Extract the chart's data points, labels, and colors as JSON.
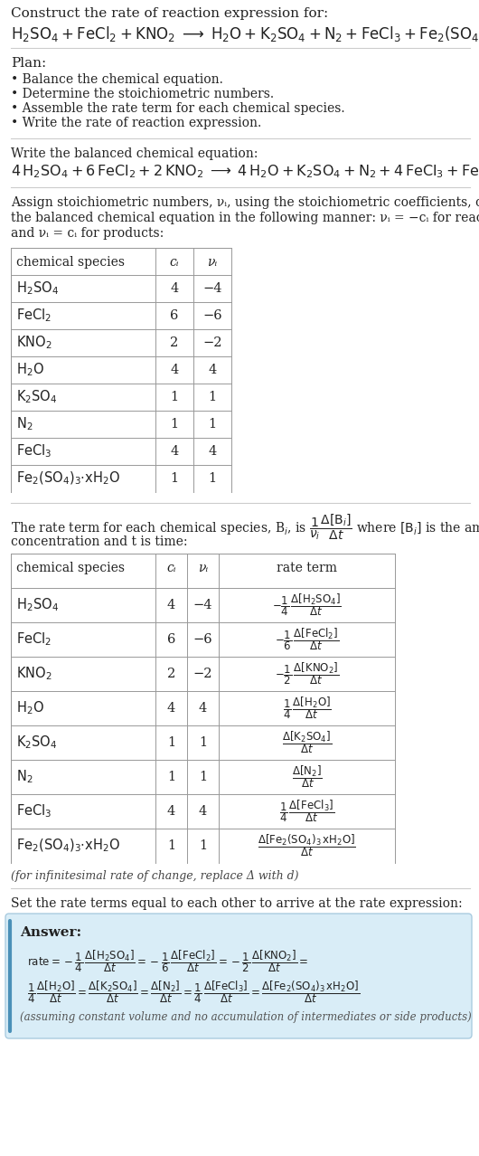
{
  "title_line1": "Construct the rate of reaction expression for:",
  "plan_header": "Plan:",
  "plan_items": [
    "• Balance the chemical equation.",
    "• Determine the stoichiometric numbers.",
    "• Assemble the rate term for each chemical species.",
    "• Write the rate of reaction expression."
  ],
  "balanced_header": "Write the balanced chemical equation:",
  "stoich_intro_lines": [
    "Assign stoichiometric numbers, νᵢ, using the stoichiometric coefficients, cᵢ, from",
    "the balanced chemical equation in the following manner: νᵢ = −cᵢ for reactants",
    "and νᵢ = cᵢ for products:"
  ],
  "table1_col0_header": "chemical species",
  "table1_col1_header": "cᵢ",
  "table1_col2_header": "νᵢ",
  "table1_rows": [
    [
      "H₂SO₄",
      "4",
      "−4"
    ],
    [
      "FeCl₂",
      "6",
      "−6"
    ],
    [
      "KNO₂",
      "2",
      "−2"
    ],
    [
      "H₂O",
      "4",
      "4"
    ],
    [
      "K₂SO₄",
      "1",
      "1"
    ],
    [
      "N₂",
      "1",
      "1"
    ],
    [
      "FeCl₃",
      "4",
      "4"
    ],
    [
      "Fe₂(SO₄)₃·xH₂O",
      "1",
      "1"
    ]
  ],
  "table2_col0_header": "chemical species",
  "table2_col1_header": "cᵢ",
  "table2_col2_header": "νᵢ",
  "table2_col3_header": "rate term",
  "table2_rows": [
    [
      "H₂SO₄",
      "4",
      "−4"
    ],
    [
      "FeCl₂",
      "6",
      "−6"
    ],
    [
      "KNO₂",
      "2",
      "−2"
    ],
    [
      "H₂O",
      "4",
      "4"
    ],
    [
      "K₂SO₄",
      "1",
      "1"
    ],
    [
      "N₂",
      "1",
      "1"
    ],
    [
      "FeCl₃",
      "4",
      "4"
    ],
    [
      "Fe₂(SO₄)₃·xH₂O",
      "1",
      "1"
    ]
  ],
  "infinitesimal_note": "(for infinitesimal rate of change, replace Δ with d)",
  "set_equal_text": "Set the rate terms equal to each other to arrive at the rate expression:",
  "answer_label": "Answer:",
  "answer_box_color": "#d9edf7",
  "answer_border_color": "#aacce0",
  "bg_color": "#ffffff",
  "text_color": "#222222",
  "table_border_color": "#999999"
}
